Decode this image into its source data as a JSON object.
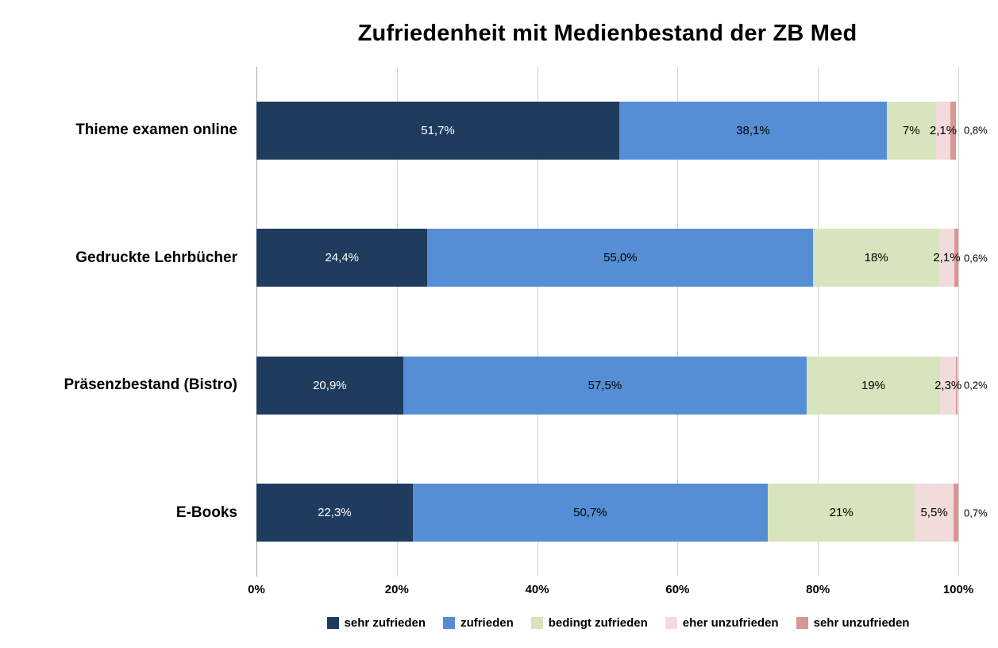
{
  "chart_data": {
    "type": "bar",
    "orientation": "horizontal",
    "stacked": true,
    "title": "Zufriedenheit mit Medienbestand der ZB Med",
    "categories": [
      "Thieme examen online",
      "Gedruckte Lehrbücher",
      "Präsenzbestand (Bistro)",
      "E-Books"
    ],
    "series": [
      {
        "name": "sehr zufrieden",
        "color": "#1f3b5e",
        "label_color": "#ffffff",
        "values": [
          51.7,
          24.4,
          20.9,
          22.3
        ],
        "labels": [
          "51,7%",
          "24,4%",
          "20,9%",
          "22,3%"
        ]
      },
      {
        "name": "zufrieden",
        "color": "#558ed5",
        "label_color": "#000000",
        "values": [
          38.1,
          55.0,
          57.5,
          50.7
        ],
        "labels": [
          "38,1%",
          "55,0%",
          "57,5%",
          "50,7%"
        ]
      },
      {
        "name": "bedingt zufrieden",
        "color": "#d7e4bd",
        "label_color": "#000000",
        "values": [
          7.0,
          18.0,
          19.0,
          21.0
        ],
        "labels": [
          "7%",
          "18%",
          "19%",
          "21%"
        ]
      },
      {
        "name": "eher unzufrieden",
        "color": "#f2dcdb",
        "label_color": "#000000",
        "values": [
          2.1,
          2.1,
          2.3,
          5.5
        ],
        "labels": [
          "2,1%",
          "2,1%",
          "2,3%",
          "5,5%"
        ]
      },
      {
        "name": "sehr unzufrieden",
        "color": "#d99694",
        "label_color": "#000000",
        "values": [
          0.8,
          0.6,
          0.2,
          0.7
        ],
        "labels": [
          "0,8%",
          "0,6%",
          "0,2%",
          "0,7%"
        ],
        "labels_outside": true
      }
    ],
    "x_ticks": [
      "0%",
      "20%",
      "40%",
      "60%",
      "80%",
      "100%"
    ],
    "xlim": [
      0,
      100
    ],
    "grid": true,
    "legend_position": "bottom"
  }
}
